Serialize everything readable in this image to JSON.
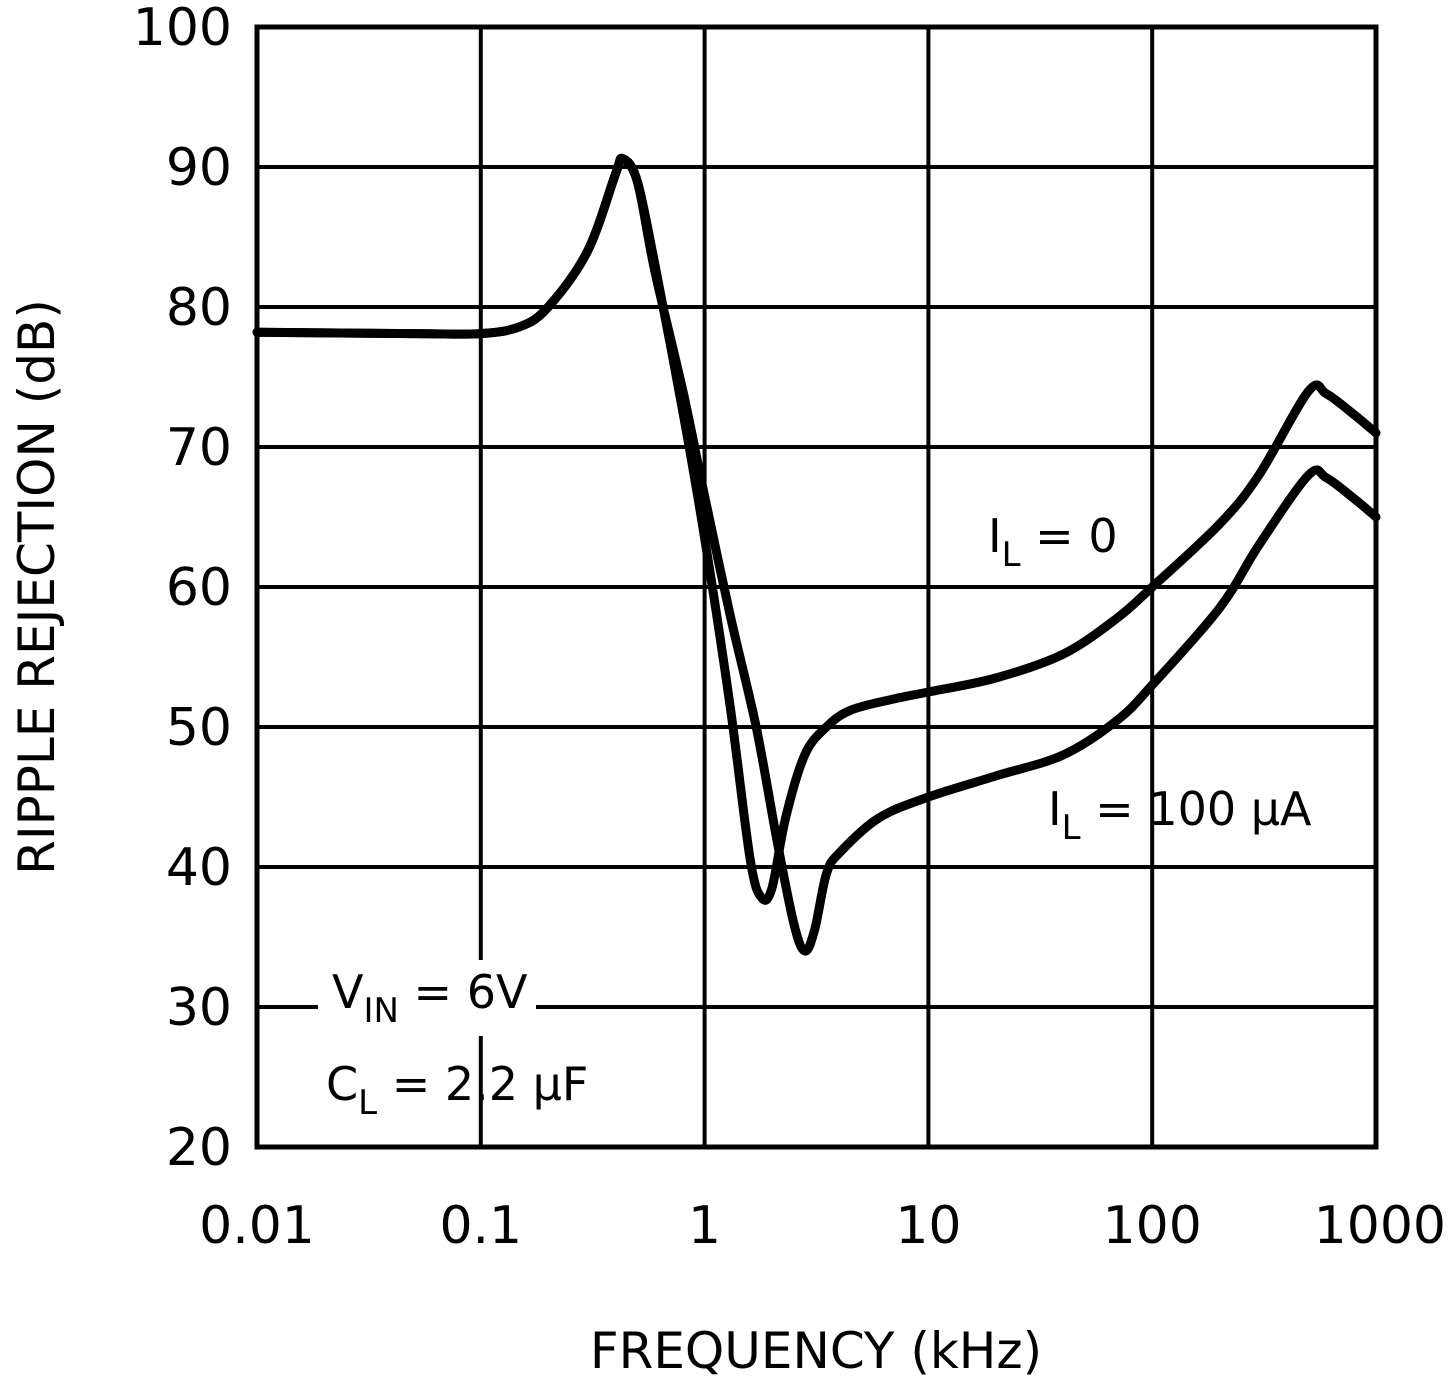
{
  "chart_data": {
    "type": "line",
    "title": "",
    "xlabel": "FREQUENCY (kHz)",
    "ylabel": "RIPPLE REJECTION (dB)",
    "xscale": "log",
    "xlim": [
      0.01,
      1000
    ],
    "ylim": [
      20,
      100
    ],
    "grid": true,
    "xticks": [
      {
        "value": 0.01,
        "label": "0.01"
      },
      {
        "value": 0.1,
        "label": "0.1"
      },
      {
        "value": 1,
        "label": "1"
      },
      {
        "value": 10,
        "label": "10"
      },
      {
        "value": 100,
        "label": "100"
      },
      {
        "value": 1000,
        "label": "1000"
      }
    ],
    "yticks": [
      {
        "value": 20,
        "label": "20"
      },
      {
        "value": 30,
        "label": "30"
      },
      {
        "value": 40,
        "label": "40"
      },
      {
        "value": 50,
        "label": "50"
      },
      {
        "value": 60,
        "label": "60"
      },
      {
        "value": 70,
        "label": "70"
      },
      {
        "value": 80,
        "label": "80"
      },
      {
        "value": 90,
        "label": "90"
      },
      {
        "value": 100,
        "label": "100"
      }
    ],
    "series": [
      {
        "name": "I_L = 0",
        "label_main": "I",
        "label_sub": "L",
        "label_rest": " = 0",
        "points": [
          [
            0.01,
            78.2
          ],
          [
            0.05,
            78.1
          ],
          [
            0.1,
            78.1
          ],
          [
            0.15,
            78.6
          ],
          [
            0.2,
            80.0
          ],
          [
            0.3,
            84.0
          ],
          [
            0.4,
            89.5
          ],
          [
            0.43,
            90.6
          ],
          [
            0.5,
            89.0
          ],
          [
            0.6,
            83.0
          ],
          [
            0.8,
            72.5
          ],
          [
            1.0,
            63.5
          ],
          [
            1.3,
            51.5
          ],
          [
            1.6,
            40.5
          ],
          [
            1.8,
            37.8
          ],
          [
            2.0,
            38.5
          ],
          [
            2.3,
            43.5
          ],
          [
            2.8,
            48.0
          ],
          [
            3.5,
            50.0
          ],
          [
            4.5,
            51.2
          ],
          [
            7,
            52.0
          ],
          [
            10,
            52.5
          ],
          [
            20,
            53.5
          ],
          [
            40,
            55.2
          ],
          [
            70,
            57.8
          ],
          [
            100,
            60.0
          ],
          [
            200,
            64.5
          ],
          [
            300,
            68.0
          ],
          [
            500,
            74.0
          ],
          [
            600,
            73.8
          ],
          [
            800,
            72.3
          ],
          [
            1000,
            71.0
          ]
        ]
      },
      {
        "name": "I_L = 100 µA",
        "label_main": "I",
        "label_sub": "L",
        "label_rest": " = 100 µA",
        "points": [
          [
            0.01,
            78.2
          ],
          [
            0.05,
            78.1
          ],
          [
            0.1,
            78.1
          ],
          [
            0.15,
            78.6
          ],
          [
            0.2,
            80.0
          ],
          [
            0.3,
            84.0
          ],
          [
            0.4,
            89.5
          ],
          [
            0.43,
            90.6
          ],
          [
            0.5,
            89.0
          ],
          [
            0.6,
            82.5
          ],
          [
            0.8,
            74.0
          ],
          [
            1.0,
            66.5
          ],
          [
            1.3,
            58.0
          ],
          [
            1.7,
            50.0
          ],
          [
            2.1,
            42.0
          ],
          [
            2.5,
            36.0
          ],
          [
            2.8,
            34.0
          ],
          [
            3.1,
            35.5
          ],
          [
            3.5,
            39.5
          ],
          [
            4.0,
            41.0
          ],
          [
            6,
            43.5
          ],
          [
            10,
            45.0
          ],
          [
            20,
            46.5
          ],
          [
            40,
            48.0
          ],
          [
            70,
            50.5
          ],
          [
            100,
            53.0
          ],
          [
            200,
            58.5
          ],
          [
            300,
            63.0
          ],
          [
            500,
            68.0
          ],
          [
            600,
            67.8
          ],
          [
            800,
            66.3
          ],
          [
            1000,
            65.0
          ]
        ]
      }
    ],
    "annotations": [
      {
        "main": "V",
        "sub": "IN",
        "rest": " = 6V"
      },
      {
        "main": "C",
        "sub": "L",
        "rest": " = 2.2 µF"
      }
    ]
  }
}
